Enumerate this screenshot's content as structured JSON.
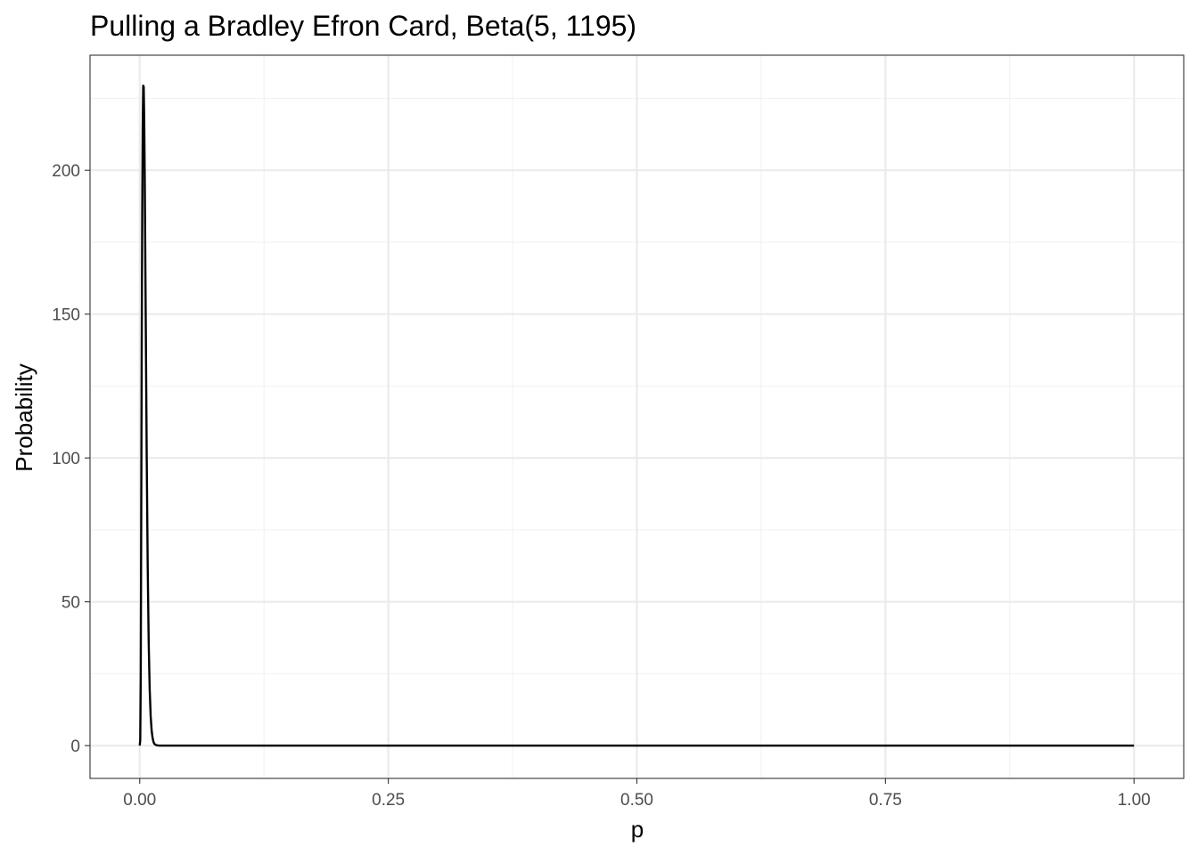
{
  "chart_data": {
    "type": "line",
    "title": "Pulling a Bradley Efron Card, Beta(5, 1195)",
    "xlabel": "p",
    "ylabel": "Probability",
    "xlim": [
      -0.05,
      1.05
    ],
    "ylim": [
      -11.4,
      240
    ],
    "x_ticks": [
      0,
      0.25,
      0.5,
      0.75,
      1
    ],
    "x_tick_labels": [
      "0.00",
      "0.25",
      "0.50",
      "0.75",
      "1.00"
    ],
    "y_ticks": [
      0,
      50,
      100,
      150,
      200
    ],
    "y_tick_labels": [
      "0",
      "50",
      "100",
      "150",
      "200"
    ],
    "grid": true,
    "distribution": {
      "family": "Beta",
      "alpha": 5,
      "beta": 1195
    },
    "series": [
      {
        "x": [
          0,
          0.0005,
          0.001,
          0.0015,
          0.002,
          0.0025,
          0.003,
          0.0035,
          0.004,
          0.0045,
          0.005,
          0.006,
          0.007,
          0.008,
          0.009,
          0.01,
          0.011,
          0.012,
          0.013,
          0.014,
          0.015,
          0.017,
          0.02,
          0.025,
          0.03,
          0.05,
          0.1,
          0.2,
          0.3,
          0.4,
          0.5,
          0.6,
          0.7,
          0.8,
          0.9,
          1
        ],
        "y": [
          0,
          1.9,
          23.8,
          80.2,
          137.7,
          185.0,
          215.6,
          229.4,
          229.0,
          217.7,
          198.7,
          149.6,
          100.8,
          62.3,
          35.9,
          19.6,
          10.2,
          5.1,
          2.5,
          1.1,
          0.5,
          0.1,
          0,
          0,
          0,
          0,
          0,
          0,
          0,
          0,
          0,
          0,
          0,
          0,
          0,
          0
        ]
      }
    ],
    "colors": {
      "line": "#000000",
      "panel_border": "#333333",
      "grid_major": "#ebebeb",
      "grid_minor": "#f2f2f2",
      "background": "#ffffff"
    }
  }
}
